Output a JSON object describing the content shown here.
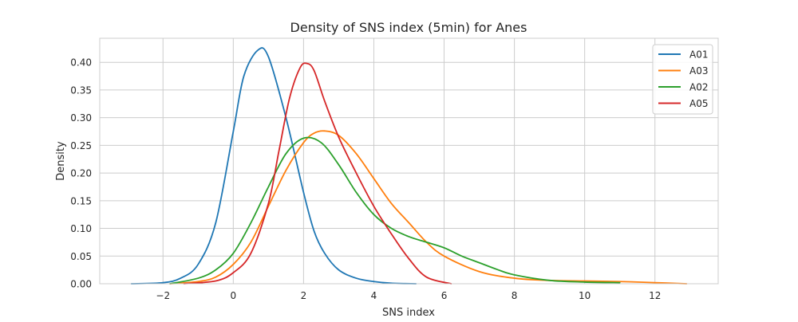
{
  "chart_data": {
    "type": "line",
    "title": "Density of SNS index (5min) for Anes",
    "xlabel": "SNS index",
    "ylabel": "Density",
    "xlim": [
      -3.8,
      13.8
    ],
    "ylim": [
      0,
      0.4435
    ],
    "xticks": [
      -2,
      0,
      2,
      4,
      6,
      8,
      10,
      12
    ],
    "xtick_labels": [
      "−2",
      "0",
      "2",
      "4",
      "6",
      "8",
      "10",
      "12"
    ],
    "yticks": [
      0,
      0.05,
      0.1,
      0.15,
      0.2,
      0.25,
      0.3,
      0.35,
      0.4
    ],
    "ytick_labels": [
      "0.00",
      "0.05",
      "0.10",
      "0.15",
      "0.20",
      "0.25",
      "0.30",
      "0.35",
      "0.40"
    ],
    "grid": true,
    "legend_position": "top-right",
    "series": [
      {
        "name": "A01",
        "color": "#1f77b4",
        "x": [
          -2.9,
          -2.0,
          -1.5,
          -1.0,
          -0.5,
          0.0,
          0.3,
          0.7,
          1.0,
          1.5,
          2.0,
          2.3,
          2.6,
          3.0,
          3.5,
          4.0,
          4.5,
          5.2
        ],
        "y": [
          0.0,
          0.002,
          0.01,
          0.035,
          0.11,
          0.275,
          0.375,
          0.422,
          0.41,
          0.3,
          0.165,
          0.095,
          0.055,
          0.025,
          0.01,
          0.004,
          0.001,
          0.0
        ]
      },
      {
        "name": "A03",
        "color": "#ff7f0e",
        "x": [
          -1.8,
          -1.0,
          -0.5,
          0.0,
          0.5,
          1.0,
          1.5,
          2.0,
          2.3,
          2.6,
          3.0,
          3.5,
          4.0,
          4.5,
          5.0,
          5.5,
          6.0,
          7.0,
          8.0,
          9.0,
          10.0,
          11.0,
          12.0,
          12.9
        ],
        "y": [
          0.0,
          0.004,
          0.012,
          0.035,
          0.075,
          0.14,
          0.205,
          0.255,
          0.272,
          0.276,
          0.268,
          0.235,
          0.19,
          0.145,
          0.11,
          0.075,
          0.05,
          0.022,
          0.01,
          0.006,
          0.005,
          0.004,
          0.002,
          0.0
        ]
      },
      {
        "name": "A02",
        "color": "#2ca02c",
        "x": [
          -1.8,
          -1.0,
          -0.5,
          0.0,
          0.5,
          1.0,
          1.5,
          2.0,
          2.5,
          3.0,
          3.5,
          4.0,
          4.5,
          5.0,
          5.5,
          6.0,
          6.5,
          7.0,
          7.5,
          8.0,
          9.0,
          10.0,
          11.0
        ],
        "y": [
          0.0,
          0.01,
          0.025,
          0.055,
          0.11,
          0.175,
          0.235,
          0.263,
          0.255,
          0.215,
          0.165,
          0.125,
          0.1,
          0.085,
          0.075,
          0.065,
          0.05,
          0.038,
          0.026,
          0.016,
          0.006,
          0.003,
          0.002
        ]
      },
      {
        "name": "A05",
        "color": "#d62728",
        "x": [
          -1.4,
          -0.5,
          0.0,
          0.5,
          1.0,
          1.3,
          1.6,
          1.9,
          2.1,
          2.3,
          2.6,
          3.0,
          3.5,
          4.0,
          4.5,
          5.0,
          5.5,
          6.2
        ],
        "y": [
          0.0,
          0.005,
          0.02,
          0.055,
          0.145,
          0.24,
          0.335,
          0.39,
          0.398,
          0.385,
          0.33,
          0.265,
          0.2,
          0.14,
          0.09,
          0.045,
          0.012,
          0.0
        ]
      }
    ]
  }
}
